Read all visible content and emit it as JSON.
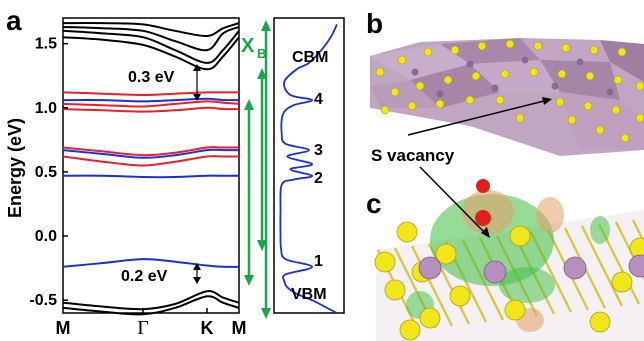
{
  "figure": {
    "panels": {
      "a": "a",
      "b": "b",
      "c": "c"
    },
    "s_vacancy_label": "S vacancy",
    "xb_main": "X",
    "xb_sub": "B",
    "gap_annotations": {
      "upper": "0.3 eV",
      "lower": "0.2 eV"
    },
    "dos_labels": {
      "cbm": "CBM",
      "vbm": "VBM",
      "n4": "4",
      "n3": "3",
      "n2": "2",
      "n1": "1"
    },
    "colors": {
      "bulk": "#000000",
      "spin_up_defect": "#e8202a",
      "spin_down_defect": "#1c2fd6",
      "transition": "#1aa64a"
    }
  },
  "chart_data": {
    "type": "line",
    "title": "",
    "xlabel": "",
    "ylabel": "Energy (eV)",
    "ylim": [
      -0.6,
      1.7
    ],
    "y_ticks": [
      "1.5",
      "1.0",
      "0.5",
      "0.0",
      "-0.5"
    ],
    "y_tick_values": [
      1.5,
      1.0,
      0.5,
      0.0,
      -0.5
    ],
    "k_points": [
      "M",
      "Γ",
      "K",
      "M"
    ],
    "k_positions": [
      0,
      1,
      1.8,
      2.2
    ],
    "series": [
      {
        "color": "#000000",
        "x": [
          0,
          0.5,
          1,
          1.4,
          1.8,
          2.0,
          2.2
        ],
        "values": [
          1.63,
          1.62,
          1.6,
          1.52,
          1.45,
          1.58,
          1.63
        ]
      },
      {
        "color": "#000000",
        "x": [
          0,
          0.5,
          1,
          1.4,
          1.8,
          2.0,
          2.2
        ],
        "values": [
          1.6,
          1.58,
          1.55,
          1.45,
          1.35,
          1.45,
          1.6
        ]
      },
      {
        "color": "#000000",
        "x": [
          0,
          0.5,
          1,
          1.4,
          1.8,
          2.0,
          2.2
        ],
        "values": [
          1.55,
          1.53,
          1.49,
          1.4,
          1.3,
          1.4,
          1.55
        ]
      },
      {
        "color": "#000000",
        "x": [
          0,
          0.5,
          1,
          1.4,
          1.8,
          2.0,
          2.2
        ],
        "values": [
          1.66,
          1.66,
          1.65,
          1.6,
          1.56,
          1.62,
          1.66
        ]
      },
      {
        "color": "#e8202a",
        "x": [
          0,
          0.5,
          1,
          1.4,
          1.8,
          2.0,
          2.2
        ],
        "values": [
          1.12,
          1.11,
          1.1,
          1.11,
          1.12,
          1.12,
          1.12
        ]
      },
      {
        "color": "#e8202a",
        "x": [
          0,
          0.5,
          1,
          1.4,
          1.8,
          2.0,
          2.2
        ],
        "values": [
          1.03,
          1.02,
          1.01,
          1.03,
          1.05,
          1.04,
          1.03
        ]
      },
      {
        "color": "#e8202a",
        "x": [
          0,
          0.5,
          1,
          1.4,
          1.8,
          2.0,
          2.2
        ],
        "values": [
          0.99,
          0.98,
          0.97,
          0.98,
          1.0,
          0.99,
          0.99
        ]
      },
      {
        "color": "#1c2fd6",
        "x": [
          0,
          0.5,
          1,
          1.4,
          1.8,
          2.0,
          2.2
        ],
        "values": [
          1.06,
          1.06,
          1.05,
          1.06,
          1.07,
          1.06,
          1.06
        ]
      },
      {
        "color": "#e8202a",
        "x": [
          0,
          0.5,
          1,
          1.4,
          1.8,
          2.0,
          2.2
        ],
        "values": [
          0.69,
          0.66,
          0.63,
          0.65,
          0.69,
          0.69,
          0.69
        ]
      },
      {
        "color": "#e8202a",
        "x": [
          0,
          0.5,
          1,
          1.4,
          1.8,
          2.0,
          2.2
        ],
        "values": [
          0.62,
          0.58,
          0.55,
          0.58,
          0.62,
          0.62,
          0.62
        ]
      },
      {
        "color": "#1c2fd6",
        "x": [
          0,
          0.5,
          1,
          1.4,
          1.8,
          2.0,
          2.2
        ],
        "values": [
          0.67,
          0.64,
          0.61,
          0.63,
          0.67,
          0.67,
          0.67
        ]
      },
      {
        "color": "#1c2fd6",
        "x": [
          0,
          0.5,
          1,
          1.4,
          1.8,
          2.0,
          2.2
        ],
        "values": [
          0.47,
          0.47,
          0.46,
          0.46,
          0.47,
          0.47,
          0.47
        ]
      },
      {
        "color": "#1c2fd6",
        "x": [
          0,
          0.5,
          1,
          1.4,
          1.8,
          2.0,
          2.2
        ],
        "values": [
          -0.24,
          -0.21,
          -0.18,
          -0.2,
          -0.23,
          -0.24,
          -0.24
        ]
      },
      {
        "color": "#000000",
        "x": [
          0,
          0.5,
          1,
          1.4,
          1.8,
          2.0,
          2.2
        ],
        "values": [
          -0.52,
          -0.55,
          -0.57,
          -0.53,
          -0.43,
          -0.48,
          -0.52
        ]
      },
      {
        "color": "#000000",
        "x": [
          0,
          0.5,
          1,
          1.4,
          1.8,
          2.0,
          2.2
        ],
        "values": [
          -0.56,
          -0.59,
          -0.61,
          -0.56,
          -0.47,
          -0.52,
          -0.56
        ]
      }
    ],
    "dos": {
      "energy": [
        -0.6,
        -0.55,
        -0.5,
        -0.45,
        -0.4,
        -0.35,
        -0.3,
        -0.24,
        -0.18,
        -0.1,
        0.0,
        0.2,
        0.4,
        0.44,
        0.47,
        0.52,
        0.56,
        0.62,
        0.67,
        0.72,
        0.8,
        0.95,
        1.02,
        1.06,
        1.1,
        1.2,
        1.3,
        1.35,
        1.45,
        1.55,
        1.65
      ],
      "density": [
        0.95,
        0.75,
        0.55,
        0.3,
        0.15,
        0.1,
        0.12,
        0.55,
        0.12,
        0.05,
        0.04,
        0.04,
        0.06,
        0.25,
        0.55,
        0.2,
        0.55,
        0.15,
        0.5,
        0.12,
        0.06,
        0.08,
        0.25,
        0.55,
        0.2,
        0.1,
        0.3,
        0.5,
        0.7,
        0.85,
        0.95
      ]
    }
  }
}
